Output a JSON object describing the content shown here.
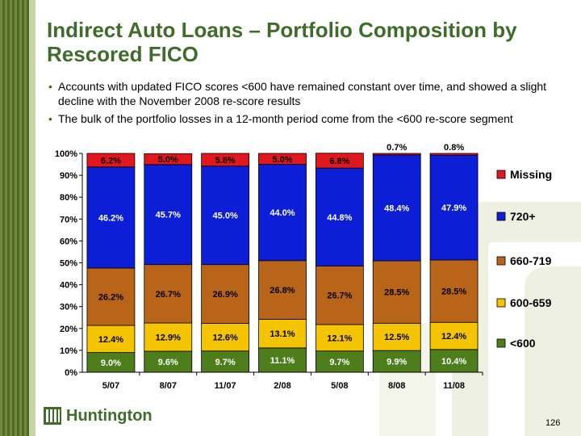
{
  "title": "Indirect Auto Loans – Portfolio Composition by Rescored FICO",
  "bullets": [
    "Accounts with updated FICO scores <600 have remained constant over time, and showed a slight decline with the November 2008 re-score results",
    "The bulk of the portfolio losses in a 12-month period come from the <600 re-score segment"
  ],
  "logo_text": "Huntington",
  "page_number": "126",
  "chart_data": {
    "type": "bar",
    "stacked": true,
    "categories": [
      "5/07",
      "8/07",
      "11/07",
      "2/08",
      "5/08",
      "8/08",
      "11/08"
    ],
    "ylim": [
      0,
      100
    ],
    "yticks": [
      "0%",
      "10%",
      "20%",
      "30%",
      "40%",
      "50%",
      "60%",
      "70%",
      "80%",
      "90%",
      "100%"
    ],
    "legend_position": "right",
    "series": [
      {
        "name": "<600",
        "color": "#4e7d1c",
        "values": [
          9.0,
          9.6,
          9.7,
          11.1,
          9.7,
          9.9,
          10.4
        ],
        "labels": [
          "9.0%",
          "9.6%",
          "9.7%",
          "11.1%",
          "9.7%",
          "9.9%",
          "10.4%"
        ]
      },
      {
        "name": "600-659",
        "color": "#f5c400",
        "values": [
          12.4,
          12.9,
          12.6,
          13.1,
          12.1,
          12.5,
          12.4
        ],
        "labels": [
          "12.4%",
          "12.9%",
          "12.6%",
          "13.1%",
          "12.1%",
          "12.5%",
          "12.4%"
        ]
      },
      {
        "name": "660-719",
        "color": "#b8651a",
        "values": [
          26.2,
          26.7,
          26.9,
          26.8,
          26.7,
          28.5,
          28.5
        ],
        "labels": [
          "26.2%",
          "26.7%",
          "26.9%",
          "26.8%",
          "26.7%",
          "28.5%",
          "28.5%"
        ]
      },
      {
        "name": "720+",
        "color": "#0d1fd6",
        "values": [
          46.2,
          45.7,
          45.0,
          44.0,
          44.8,
          48.4,
          47.9
        ],
        "labels": [
          "46.2%",
          "45.7%",
          "45.0%",
          "44.0%",
          "44.8%",
          "48.4%",
          "47.9%"
        ]
      },
      {
        "name": "Missing",
        "color": "#e0171c",
        "values": [
          6.2,
          5.0,
          5.8,
          5.0,
          6.8,
          0.7,
          0.8
        ],
        "labels": [
          "6.2%",
          "5.0%",
          "5.8%",
          "5.0%",
          "6.8%",
          "0.7%",
          "0.8%"
        ]
      }
    ]
  }
}
